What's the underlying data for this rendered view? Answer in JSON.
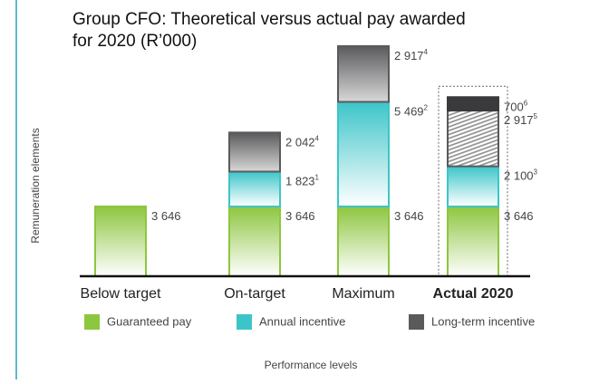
{
  "chart_data": {
    "type": "stacked_bar",
    "title": "Group CFO: Theoretical versus actual pay awarded for 2020 (R’000)",
    "x_label": "Performance levels",
    "y_label": "Remuneration elements",
    "categories": [
      "Below target",
      "On-target",
      "Maximum",
      "Actual 2020"
    ],
    "highlight_category": 3,
    "ylim": [
      0,
      12500
    ],
    "series": [
      {
        "name": "Guaranteed pay",
        "color": "#8dc63f",
        "values": [
          3646,
          3646,
          3646,
          3646
        ],
        "value_labels": [
          "3 646",
          "3 646",
          "3 646",
          "3 646"
        ],
        "value_notes": [
          null,
          null,
          null,
          null
        ]
      },
      {
        "name": "Annual incentive",
        "color": "#3cc5c9",
        "values": [
          null,
          1823,
          5469,
          2100
        ],
        "value_labels": [
          null,
          "1 823",
          "5 469",
          "2 100"
        ],
        "value_notes": [
          null,
          "1",
          "2",
          "3"
        ]
      },
      {
        "name": "Long-term incentive",
        "color": "#5a5a5c",
        "values": [
          null,
          2042,
          2917,
          2917
        ],
        "value_labels": [
          null,
          "2 042",
          "2 917",
          "2 917"
        ],
        "value_notes": [
          null,
          "4",
          "4",
          "5"
        ],
        "hatched": [
          false,
          false,
          false,
          true
        ]
      },
      {
        "color": "#3a3a3c",
        "values": [
          null,
          null,
          null,
          700
        ],
        "value_labels": [
          null,
          null,
          null,
          "700"
        ],
        "value_notes": [
          null,
          null,
          null,
          "6"
        ]
      }
    ]
  }
}
